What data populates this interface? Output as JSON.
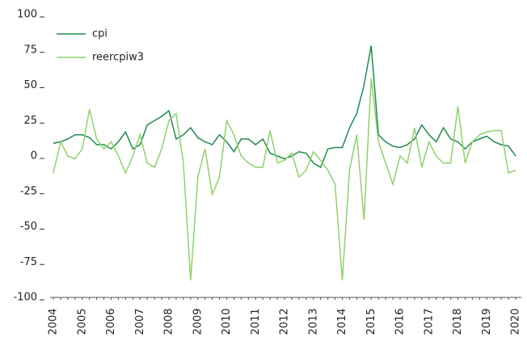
{
  "chart_data": {
    "type": "line",
    "categories": [
      "2004",
      null,
      null,
      null,
      "2005",
      null,
      null,
      null,
      "2006",
      null,
      null,
      null,
      "2007",
      null,
      null,
      null,
      "2008",
      null,
      null,
      null,
      "2009",
      null,
      null,
      null,
      "2010",
      null,
      null,
      null,
      "2011",
      null,
      null,
      null,
      "2012",
      null,
      null,
      null,
      "2013",
      null,
      null,
      null,
      "2014",
      null,
      null,
      null,
      "2015",
      null,
      null,
      null,
      "2016",
      null,
      null,
      null,
      "2017",
      null,
      null,
      null,
      "2018",
      null,
      null,
      null,
      "2019",
      null,
      null,
      null,
      "2020"
    ],
    "series": [
      {
        "name": "cpi",
        "color": "#1e8a4c",
        "values": [
          9,
          10,
          12,
          15,
          15,
          13,
          8,
          8,
          5,
          10,
          17,
          5,
          8,
          22,
          25,
          28,
          32,
          12,
          15,
          20,
          13,
          10,
          8,
          15,
          10,
          3,
          12,
          12,
          8,
          12,
          2,
          0,
          -2,
          0,
          3,
          2,
          -5,
          -8,
          5,
          6,
          6,
          20,
          30,
          50,
          78,
          15,
          10,
          7,
          6,
          8,
          12,
          22,
          15,
          10,
          20,
          12,
          10,
          5,
          10,
          12,
          14,
          10,
          8,
          7,
          0
        ]
      },
      {
        "name": "reercpiw3",
        "color": "#8fd16a",
        "values": [
          -12,
          10,
          0,
          -2,
          5,
          33,
          12,
          5,
          10,
          0,
          -12,
          0,
          15,
          -5,
          -8,
          5,
          25,
          30,
          -5,
          -88,
          -15,
          5,
          -27,
          -15,
          25,
          15,
          0,
          -5,
          -8,
          -8,
          18,
          -5,
          -3,
          2,
          -15,
          -10,
          3,
          -3,
          -10,
          -20,
          -88,
          -10,
          15,
          -45,
          55,
          10,
          -5,
          -20,
          0,
          -5,
          20,
          -8,
          10,
          0,
          -5,
          -5,
          35,
          -5,
          10,
          15,
          17,
          18,
          18,
          -12,
          -10
        ]
      }
    ],
    "ylim": [
      -100,
      100
    ],
    "yticks": [
      -100,
      -75,
      -50,
      -25,
      0,
      25,
      50,
      75,
      100
    ],
    "legend": "upper left"
  }
}
